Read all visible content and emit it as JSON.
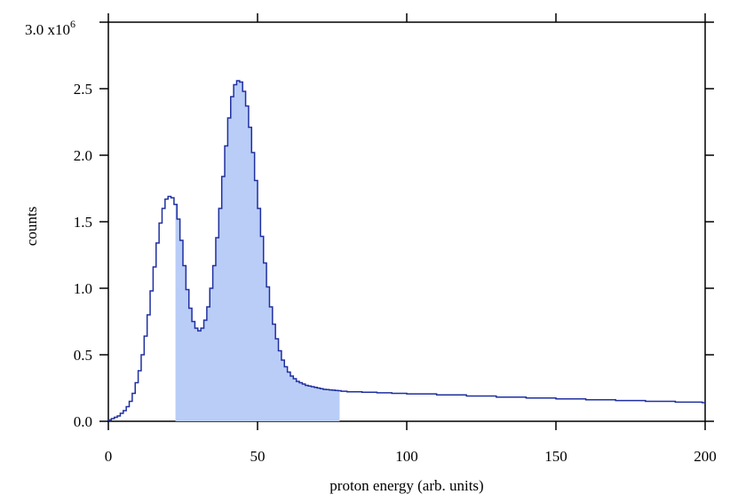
{
  "chart_data": {
    "type": "histogram",
    "xlabel": "proton energy (arb. units)",
    "ylabel": "counts",
    "xlim": [
      0,
      200
    ],
    "ylim": [
      0,
      3.0
    ],
    "y_multiplier_label": {
      "base": "3.0 x10",
      "exponent": "6"
    },
    "x_ticks": [
      {
        "value": 0,
        "label": "0"
      },
      {
        "value": 50,
        "label": "50"
      },
      {
        "value": 100,
        "label": "100"
      },
      {
        "value": 150,
        "label": "150"
      },
      {
        "value": 200,
        "label": "200"
      }
    ],
    "y_ticks": [
      {
        "value": 0.0,
        "label": "0.0"
      },
      {
        "value": 0.5,
        "label": "0.5"
      },
      {
        "value": 1.0,
        "label": "1.0"
      },
      {
        "value": 1.5,
        "label": "1.5"
      },
      {
        "value": 2.0,
        "label": "2.0"
      },
      {
        "value": 2.5,
        "label": "2.5"
      }
    ],
    "shaded_region": [
      22.5,
      77.5
    ],
    "grid": false,
    "colors": {
      "line": "#1f2fa0",
      "fill": "#b9cdf7",
      "axis": "#000000"
    },
    "bin_width": 1,
    "x": [
      0,
      1,
      2,
      3,
      4,
      5,
      6,
      7,
      8,
      9,
      10,
      11,
      12,
      13,
      14,
      15,
      16,
      17,
      18,
      19,
      20,
      21,
      22,
      23,
      24,
      25,
      26,
      27,
      28,
      29,
      30,
      31,
      32,
      33,
      34,
      35,
      36,
      37,
      38,
      39,
      40,
      41,
      42,
      43,
      44,
      45,
      46,
      47,
      48,
      49,
      50,
      51,
      52,
      53,
      54,
      55,
      56,
      57,
      58,
      59,
      60,
      61,
      62,
      63,
      64,
      65,
      66,
      67,
      68,
      69,
      70,
      71,
      72,
      73,
      74,
      75,
      76,
      77,
      78,
      80,
      85,
      90,
      95,
      100,
      110,
      120,
      130,
      140,
      150,
      160,
      170,
      180,
      190,
      199
    ],
    "y": [
      0.01,
      0.02,
      0.03,
      0.04,
      0.06,
      0.08,
      0.11,
      0.15,
      0.21,
      0.29,
      0.38,
      0.5,
      0.64,
      0.8,
      0.98,
      1.16,
      1.34,
      1.49,
      1.6,
      1.67,
      1.69,
      1.68,
      1.63,
      1.52,
      1.36,
      1.17,
      0.99,
      0.85,
      0.75,
      0.7,
      0.68,
      0.7,
      0.76,
      0.86,
      1.0,
      1.17,
      1.38,
      1.6,
      1.84,
      2.07,
      2.28,
      2.44,
      2.53,
      2.56,
      2.55,
      2.48,
      2.37,
      2.21,
      2.02,
      1.81,
      1.6,
      1.39,
      1.19,
      1.01,
      0.86,
      0.73,
      0.62,
      0.53,
      0.46,
      0.41,
      0.37,
      0.34,
      0.32,
      0.3,
      0.29,
      0.28,
      0.27,
      0.265,
      0.26,
      0.255,
      0.25,
      0.245,
      0.24,
      0.238,
      0.236,
      0.234,
      0.232,
      0.23,
      0.226,
      0.222,
      0.218,
      0.214,
      0.21,
      0.206,
      0.198,
      0.19,
      0.182,
      0.175,
      0.168,
      0.162,
      0.156,
      0.15,
      0.144,
      0.14
    ]
  }
}
